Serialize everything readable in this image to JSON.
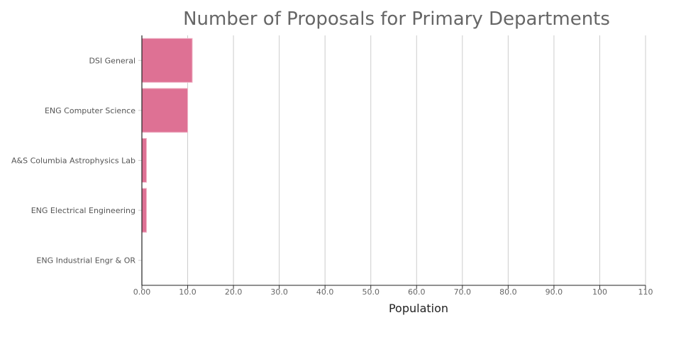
{
  "chart_data": {
    "type": "bar",
    "orientation": "horizontal",
    "title": "Number of Proposals for Primary Departments",
    "xlabel": "Population",
    "ylabel": "",
    "categories": [
      "DSI General",
      "ENG Computer Science",
      "A&S Columbia Astrophysics Lab",
      "ENG Electrical Engineering",
      "ENG Industrial Engr & OR"
    ],
    "values": [
      11,
      10,
      1,
      1,
      0
    ],
    "xlim": [
      0,
      110
    ],
    "xticks": [
      0,
      10,
      20,
      30,
      40,
      50,
      60,
      70,
      80,
      90,
      100,
      110
    ],
    "xtick_labels": [
      "0.00",
      "10.0",
      "20.0",
      "30.0",
      "40.0",
      "50.0",
      "60.0",
      "70.0",
      "80.0",
      "90.0",
      "100",
      "110"
    ],
    "grid": true,
    "bar_color": "#de7194"
  }
}
